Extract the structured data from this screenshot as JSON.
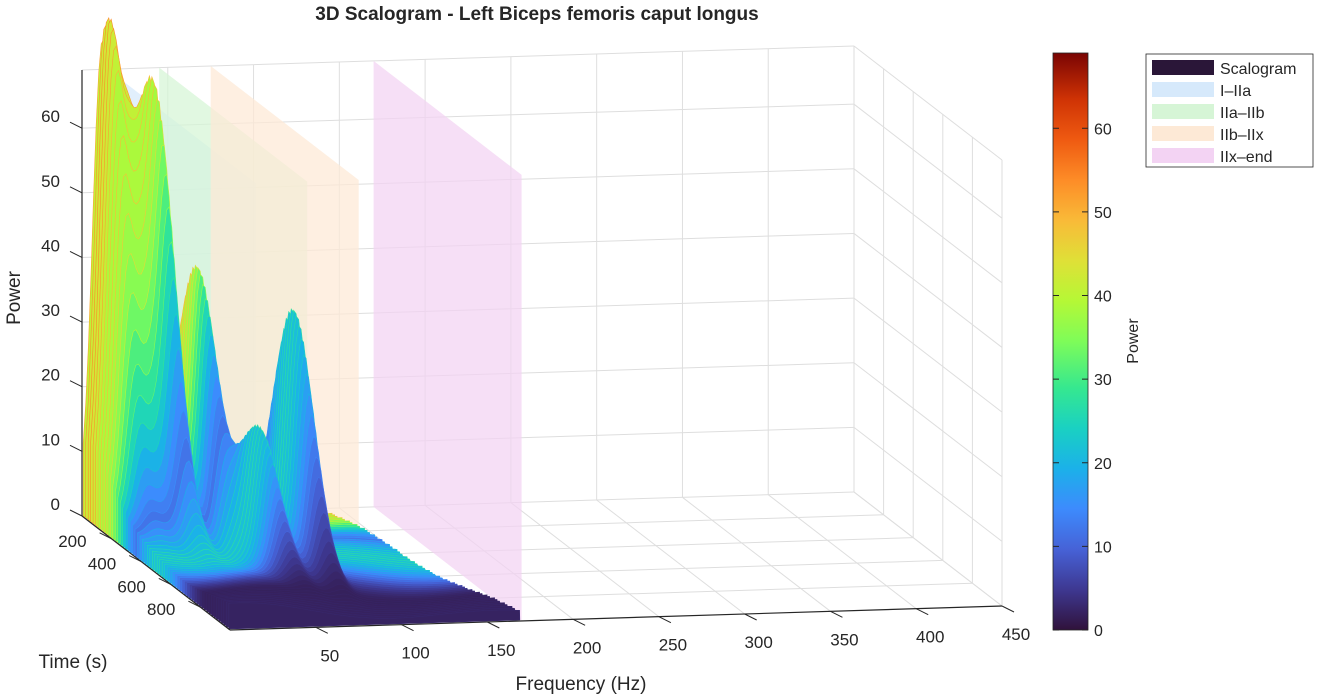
{
  "chart_data": {
    "type": "surface",
    "title": "3D Scalogram - Left Biceps femoris caput longus",
    "xlabel": "Frequency (Hz)",
    "ylabel": "Time (s)",
    "zlabel": "Power",
    "colorbar_label": "Power",
    "colormap": "turbo",
    "xlim": [
      0,
      450
    ],
    "ylim": [
      0,
      1000
    ],
    "zlim": [
      0,
      69
    ],
    "x_ticks": [
      50,
      100,
      150,
      200,
      250,
      300,
      350,
      400,
      450
    ],
    "y_ticks": [
      200,
      400,
      600,
      800
    ],
    "z_ticks": [
      0,
      10,
      20,
      30,
      40,
      50,
      60
    ],
    "colorbar_ticks": [
      0,
      10,
      20,
      30,
      40,
      50,
      60
    ],
    "colorbar_range": [
      0,
      69
    ],
    "grid": true,
    "legend_position": "top-right",
    "legend": [
      {
        "label": "Scalogram",
        "color": "#2a1638"
      },
      {
        "label": "I–IIa",
        "color": "#d6e9fb"
      },
      {
        "label": "IIa–IIb",
        "color": "#d6f5d6"
      },
      {
        "label": "IIb–IIx",
        "color": "#fde9d6"
      },
      {
        "label": "IIx–end",
        "color": "#f3d3f3"
      }
    ],
    "bands": [
      {
        "name": "I–IIa",
        "freq": 15,
        "color": "#d6e9fb"
      },
      {
        "name": "IIa–IIb",
        "freq": 45,
        "color": "#d6f5d6"
      },
      {
        "name": "IIb–IIx",
        "freq": 75,
        "color": "#fde9d6"
      },
      {
        "name": "IIx–end",
        "freq": 170,
        "color": "#f3d3f3"
      }
    ],
    "peaks": [
      {
        "time": 50,
        "freq": 10,
        "power": 66
      },
      {
        "time": 50,
        "freq": 20,
        "power": 49
      },
      {
        "time": 150,
        "freq": 30,
        "power": 61
      },
      {
        "time": 200,
        "freq": 50,
        "power": 40
      },
      {
        "time": 500,
        "freq": 80,
        "power": 38
      },
      {
        "time": 500,
        "freq": 60,
        "power": 20
      }
    ]
  }
}
